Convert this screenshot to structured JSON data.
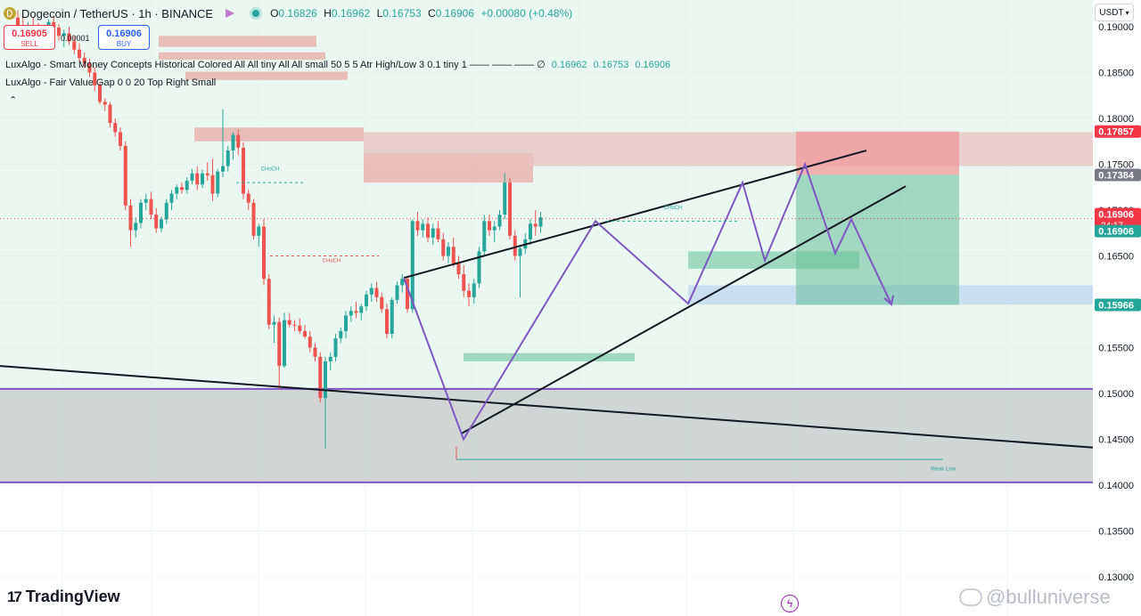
{
  "header": {
    "symbol_title": "Dogecoin / TetherUS · 1h · BINANCE",
    "ohlc": [
      {
        "label": "O",
        "value": "0.16826"
      },
      {
        "label": "H",
        "value": "0.16962"
      },
      {
        "label": "L",
        "value": "0.16753"
      },
      {
        "label": "C",
        "value": "0.16906"
      }
    ],
    "change": "+0.00080 (+0.48%)"
  },
  "trade": {
    "sell_price": "0.16905",
    "sell_label": "SELL",
    "spread": "0.00001",
    "buy_price": "0.16906",
    "buy_label": "BUY"
  },
  "indicators": [
    {
      "text": "LuxAlgo - Smart Money Concepts Historical Colored All All tiny All All small 50 5 5 Atr High/Low 3 0.1 tiny 1 —— —— ——  ∅",
      "values": [
        "0.16962",
        "0.16753",
        "0.16906"
      ]
    },
    {
      "text": "LuxAlgo - Fair Value Gap 0 0 20 Top Right Small",
      "values": []
    }
  ],
  "currency": "USDT",
  "brand": "TradingView",
  "watermark": "@bulluniverse",
  "icons": {
    "symbol": "dogecoin-icon",
    "market": "market-status-icon",
    "live": "live-dot-icon",
    "collapse": "chevron-up-icon",
    "flash": "flash-icon"
  },
  "colors": {
    "bull": "#26a69a",
    "bear": "#ef5350",
    "purple": "#7e57c2",
    "line": "#131722",
    "choch": "#ef5350"
  },
  "chart_data": {
    "type": "candlestick",
    "y_ticks": [
      0.13,
      0.135,
      0.14,
      0.145,
      0.15,
      0.155,
      0.16,
      0.165,
      0.17,
      0.175,
      0.18,
      0.185,
      0.19
    ],
    "y_tick_labels": [
      "0.13000",
      "0.13500",
      "0.14000",
      "0.14500",
      "0.15000",
      "0.15500",
      "0.16000",
      "0.16500",
      "0.17000",
      "0.17500",
      "0.18000",
      "0.18500",
      "0.19000"
    ],
    "ylim": [
      0.1285,
      0.1915
    ],
    "price_tags": [
      {
        "value": 0.17857,
        "label": "0.17857",
        "color": "#f23645"
      },
      {
        "value": 0.17384,
        "label": "0.17384",
        "color": "#787b86"
      },
      {
        "value": 0.16906,
        "label": "0.16906",
        "color": "#f23645",
        "extra": "24:17"
      },
      {
        "value": 0.16906,
        "label": "0.16906",
        "color": "#26a69a"
      },
      {
        "value": 0.15966,
        "label": "0.15966",
        "color": "#26a69a"
      }
    ],
    "labels": [
      {
        "text": "CHoCH",
        "color": "#26a69a"
      },
      {
        "text": "CHoCH",
        "color": "#ef5350"
      },
      {
        "text": "CHoCH",
        "color": "#26a69a"
      },
      {
        "text": "Weak Low",
        "color": "#26a69a"
      }
    ],
    "candles": [
      [
        0.191,
        0.1918,
        0.1895,
        0.19
      ],
      [
        0.19,
        0.1912,
        0.189,
        0.1896
      ],
      [
        0.1896,
        0.1905,
        0.1885,
        0.1902
      ],
      [
        0.1902,
        0.191,
        0.1892,
        0.1898
      ],
      [
        0.1898,
        0.1904,
        0.1888,
        0.1893
      ],
      [
        0.1893,
        0.19,
        0.1882,
        0.1896
      ],
      [
        0.1896,
        0.1908,
        0.189,
        0.1905
      ],
      [
        0.1905,
        0.1912,
        0.1895,
        0.1899
      ],
      [
        0.1899,
        0.1903,
        0.1885,
        0.189
      ],
      [
        0.189,
        0.1897,
        0.1878,
        0.1893
      ],
      [
        0.1893,
        0.19,
        0.188,
        0.1884
      ],
      [
        0.1884,
        0.189,
        0.187,
        0.1875
      ],
      [
        0.1875,
        0.1882,
        0.1862,
        0.1866
      ],
      [
        0.1866,
        0.1872,
        0.1855,
        0.186
      ],
      [
        0.186,
        0.1865,
        0.1845,
        0.185
      ],
      [
        0.185,
        0.1856,
        0.183,
        0.1836
      ],
      [
        0.1836,
        0.184,
        0.1815,
        0.1818
      ],
      [
        0.1818,
        0.1822,
        0.1808,
        0.1815
      ],
      [
        0.1815,
        0.1818,
        0.179,
        0.1795
      ],
      [
        0.1795,
        0.18,
        0.178,
        0.1785
      ],
      [
        0.1785,
        0.179,
        0.1765,
        0.177
      ],
      [
        0.177,
        0.1775,
        0.17,
        0.1705
      ],
      [
        0.1705,
        0.1712,
        0.166,
        0.1678
      ],
      [
        0.1678,
        0.1692,
        0.167,
        0.1686
      ],
      [
        0.1686,
        0.1712,
        0.168,
        0.1708
      ],
      [
        0.1708,
        0.1718,
        0.17,
        0.1712
      ],
      [
        0.1712,
        0.172,
        0.169,
        0.1695
      ],
      [
        0.1695,
        0.1702,
        0.1675,
        0.168
      ],
      [
        0.168,
        0.1693,
        0.1676,
        0.169
      ],
      [
        0.169,
        0.1712,
        0.1685,
        0.1708
      ],
      [
        0.1708,
        0.1722,
        0.17,
        0.1718
      ],
      [
        0.1718,
        0.1728,
        0.1712,
        0.1725
      ],
      [
        0.1725,
        0.173,
        0.1718,
        0.1722
      ],
      [
        0.1722,
        0.1736,
        0.1718,
        0.1732
      ],
      [
        0.1732,
        0.1745,
        0.1728,
        0.174
      ],
      [
        0.174,
        0.1748,
        0.1722,
        0.1728
      ],
      [
        0.1728,
        0.1744,
        0.1724,
        0.174
      ],
      [
        0.174,
        0.1752,
        0.1732,
        0.1738
      ],
      [
        0.1738,
        0.1756,
        0.171,
        0.1718
      ],
      [
        0.1718,
        0.1745,
        0.1714,
        0.1742
      ],
      [
        0.1742,
        0.181,
        0.1736,
        0.1748
      ],
      [
        0.1748,
        0.177,
        0.1742,
        0.1765
      ],
      [
        0.1765,
        0.1785,
        0.1755,
        0.1782
      ],
      [
        0.1782,
        0.1788,
        0.176,
        0.1768
      ],
      [
        0.1768,
        0.1774,
        0.1712,
        0.1718
      ],
      [
        0.1718,
        0.1722,
        0.17,
        0.1708
      ],
      [
        0.1708,
        0.1712,
        0.1668,
        0.1672
      ],
      [
        0.1672,
        0.1685,
        0.166,
        0.1682
      ],
      [
        0.1682,
        0.169,
        0.1618,
        0.1625
      ],
      [
        0.1625,
        0.163,
        0.157,
        0.1575
      ],
      [
        0.1575,
        0.1585,
        0.1555,
        0.1578
      ],
      [
        0.1578,
        0.1583,
        0.1505,
        0.153
      ],
      [
        0.153,
        0.1588,
        0.1528,
        0.158
      ],
      [
        0.158,
        0.1588,
        0.1572,
        0.1575
      ],
      [
        0.1575,
        0.158,
        0.1568,
        0.1574
      ],
      [
        0.1574,
        0.1582,
        0.1565,
        0.1568
      ],
      [
        0.1568,
        0.1575,
        0.156,
        0.1562
      ],
      [
        0.1562,
        0.1568,
        0.1545,
        0.155
      ],
      [
        0.155,
        0.1555,
        0.1535,
        0.154
      ],
      [
        0.154,
        0.1545,
        0.149,
        0.1495
      ],
      [
        0.1495,
        0.154,
        0.144,
        0.1535
      ],
      [
        0.1535,
        0.1545,
        0.1525,
        0.154
      ],
      [
        0.154,
        0.1565,
        0.1535,
        0.156
      ],
      [
        0.156,
        0.1572,
        0.1555,
        0.1568
      ],
      [
        0.1568,
        0.159,
        0.156,
        0.1585
      ],
      [
        0.1585,
        0.1595,
        0.1578,
        0.159
      ],
      [
        0.159,
        0.16,
        0.1582,
        0.1588
      ],
      [
        0.1588,
        0.1598,
        0.158,
        0.1595
      ],
      [
        0.1595,
        0.1612,
        0.159,
        0.1608
      ],
      [
        0.1608,
        0.162,
        0.16,
        0.1615
      ],
      [
        0.1615,
        0.1622,
        0.16,
        0.1605
      ],
      [
        0.1605,
        0.161,
        0.1588,
        0.1592
      ],
      [
        0.1592,
        0.1598,
        0.156,
        0.1565
      ],
      [
        0.1565,
        0.1605,
        0.156,
        0.1602
      ],
      [
        0.1602,
        0.1622,
        0.1598,
        0.1618
      ],
      [
        0.1618,
        0.163,
        0.161,
        0.1625
      ],
      [
        0.1625,
        0.1628,
        0.1588,
        0.1592
      ],
      [
        0.1592,
        0.169,
        0.1588,
        0.1688
      ],
      [
        0.1688,
        0.1698,
        0.1672,
        0.1678
      ],
      [
        0.1678,
        0.169,
        0.167,
        0.1685
      ],
      [
        0.1685,
        0.1692,
        0.1665,
        0.167
      ],
      [
        0.167,
        0.1685,
        0.1662,
        0.168
      ],
      [
        0.168,
        0.1688,
        0.1665,
        0.1668
      ],
      [
        0.1668,
        0.1675,
        0.1645,
        0.165
      ],
      [
        0.165,
        0.1665,
        0.1642,
        0.166
      ],
      [
        0.166,
        0.167,
        0.1638,
        0.1642
      ],
      [
        0.1642,
        0.165,
        0.1625,
        0.163
      ],
      [
        0.163,
        0.164,
        0.1605,
        0.1612
      ],
      [
        0.1612,
        0.162,
        0.1595,
        0.1605
      ],
      [
        0.1605,
        0.1625,
        0.1598,
        0.162
      ],
      [
        0.162,
        0.166,
        0.1615,
        0.1655
      ],
      [
        0.1655,
        0.1695,
        0.165,
        0.1688
      ],
      [
        0.1688,
        0.1695,
        0.1672,
        0.1678
      ],
      [
        0.1678,
        0.1688,
        0.1665,
        0.1682
      ],
      [
        0.1682,
        0.17,
        0.1678,
        0.1695
      ],
      [
        0.1695,
        0.174,
        0.169,
        0.173
      ],
      [
        0.173,
        0.1735,
        0.1668,
        0.1672
      ],
      [
        0.1672,
        0.1678,
        0.1645,
        0.165
      ],
      [
        0.165,
        0.1662,
        0.1605,
        0.1658
      ],
      [
        0.1658,
        0.1675,
        0.1652,
        0.1668
      ],
      [
        0.1668,
        0.169,
        0.1662,
        0.1685
      ],
      [
        0.1685,
        0.17,
        0.1672,
        0.1682
      ],
      [
        0.1682,
        0.1698,
        0.1675,
        0.1692
      ]
    ]
  }
}
